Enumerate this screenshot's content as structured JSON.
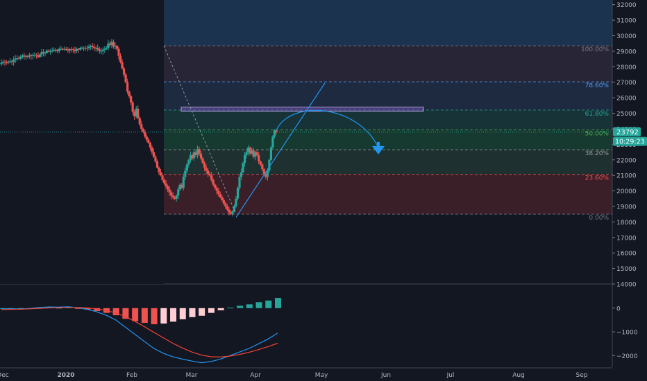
{
  "chart_data": {
    "type": "candlestick",
    "x_ticks": [
      "Dec",
      "2020",
      "Feb",
      "Mar",
      "Apr",
      "May",
      "Jun",
      "Jul",
      "Aug",
      "Sep"
    ],
    "y_ticks": [
      14000,
      15000,
      16000,
      17000,
      18000,
      19000,
      20000,
      21000,
      22000,
      23000,
      24000,
      25000,
      26000,
      27000,
      28000,
      29000,
      30000,
      31000,
      32000
    ],
    "ylim": [
      14000,
      32300
    ],
    "price_badge": "23792",
    "price_value": 23792,
    "countdown_badge": "10:29:23",
    "fib_levels": [
      {
        "label": "100.00%",
        "value": 29350,
        "color": "#787b86"
      },
      {
        "label": "78.60%",
        "value": 27030,
        "color": "#5b9cf6"
      },
      {
        "label": "61.80%",
        "value": 25210,
        "color": "#26a69a"
      },
      {
        "label": "50.00%",
        "value": 23930,
        "color": "#4caf50"
      },
      {
        "label": "38.20%",
        "value": 22650,
        "color": "#9e9e9e"
      },
      {
        "label": "23.60%",
        "value": 21070,
        "color": "#ef5350"
      },
      {
        "label": "0.00%",
        "value": 18500,
        "color": "#787b86"
      }
    ],
    "resistance_zone": [
      25140,
      25400
    ],
    "price_series": [
      29200,
      29500,
      29400,
      29600,
      29300,
      29350,
      29150,
      28700,
      28300,
      27900,
      27500,
      27000,
      26400,
      26100,
      25700,
      25100,
      24800,
      25300,
      24700,
      24300,
      24000,
      23800,
      23500,
      23300,
      23100,
      22800,
      22500,
      22200,
      21900,
      21500,
      21200,
      21000,
      20700,
      20500,
      20300,
      20100,
      19900,
      19700,
      19600,
      19500,
      19700,
      20100,
      20400,
      20200,
      20900,
      21300,
      21700,
      22000,
      22300,
      22100,
      22500,
      22300,
      22700,
      22400,
      22100,
      21800,
      21500,
      21300,
      21100,
      21000,
      20700,
      20400,
      20200,
      20000,
      19800,
      19600,
      19400,
      19200,
      19000,
      18800,
      18600,
      18500,
      18700,
      19000,
      19500,
      20200,
      20900,
      21200,
      21800,
      22300,
      22500,
      22800,
      22400,
      22600,
      22200,
      22500,
      22300,
      21900,
      21700,
      21400,
      21100,
      20900,
      21300,
      22000,
      22800,
      23500,
      23900,
      23792
    ],
    "macd": {
      "y_ticks": [
        0,
        -1000,
        -2000
      ],
      "ylim": [
        -2400,
        900
      ],
      "macd_line": [
        -30,
        -20,
        -40,
        -10,
        30,
        50,
        40,
        60,
        20,
        -50,
        -150,
        -300,
        -500,
        -800,
        -1100,
        -1400,
        -1700,
        -1900,
        -2050,
        -2150,
        -2230,
        -2300,
        -2250,
        -2150,
        -2000,
        -1850,
        -1700,
        -1500,
        -1300,
        -1050
      ],
      "signal_line": [
        -60,
        -50,
        -45,
        -30,
        -10,
        10,
        20,
        30,
        30,
        10,
        -30,
        -100,
        -200,
        -350,
        -550,
        -780,
        -1020,
        -1250,
        -1480,
        -1680,
        -1850,
        -1980,
        -2050,
        -2060,
        -2020,
        -1950,
        -1860,
        -1750,
        -1620,
        -1480
      ],
      "histogram": [
        0,
        0,
        0,
        0,
        40,
        40,
        20,
        30,
        -10,
        -60,
        -120,
        -200,
        -300,
        -450,
        -550,
        -620,
        -680,
        -650,
        -570,
        -470,
        -380,
        -320,
        -200,
        -90,
        20,
        100,
        160,
        250,
        320,
        430
      ]
    }
  }
}
